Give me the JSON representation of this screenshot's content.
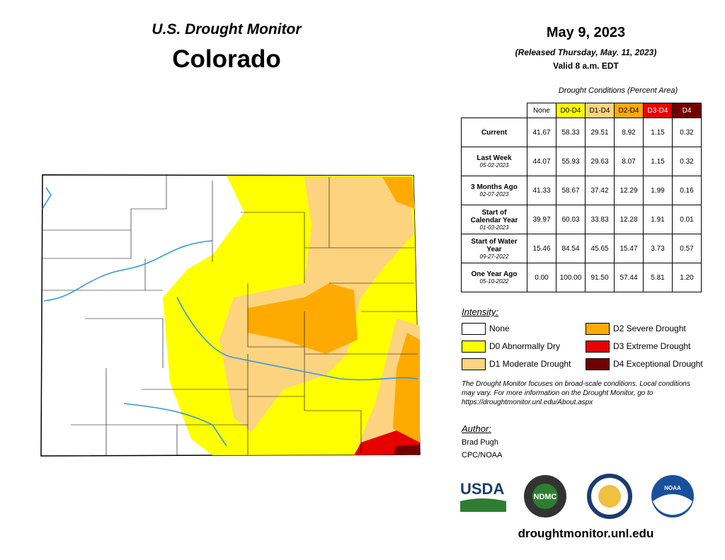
{
  "header": {
    "title": "U.S. Drought Monitor",
    "state": "Colorado"
  },
  "date": {
    "date": "May 9, 2023",
    "released": "(Released Thursday, May. 11, 2023)",
    "valid": "Valid 8 a.m. EDT"
  },
  "table": {
    "caption": "Drought Conditions (Percent Area)",
    "columns": [
      {
        "label": "None",
        "color": "#ffffff"
      },
      {
        "label": "D0-D4",
        "color": "#ffff00"
      },
      {
        "label": "D1-D4",
        "color": "#fcd37f"
      },
      {
        "label": "D2-D4",
        "color": "#ffaa00"
      },
      {
        "label": "D3-D4",
        "color": "#e60000"
      },
      {
        "label": "D4",
        "color": "#730000"
      }
    ],
    "rows": [
      {
        "label": "Current",
        "values": [
          "41.67",
          "58.33",
          "29.51",
          "8.92",
          "1.15",
          "0.32"
        ]
      },
      {
        "label": "Last Week",
        "date": "05-02-2023",
        "values": [
          "44.07",
          "55.93",
          "29.63",
          "8.07",
          "1.15",
          "0.32"
        ]
      },
      {
        "label": "3 Months Ago",
        "date": "02-07-2023",
        "values": [
          "41.33",
          "58.67",
          "37.42",
          "12.29",
          "1.99",
          "0.16"
        ]
      },
      {
        "label": "Start of Calendar Year",
        "date": "01-03-2023",
        "values": [
          "39.97",
          "60.03",
          "33.83",
          "12.28",
          "1.91",
          "0.01"
        ]
      },
      {
        "label": "Start of Water Year",
        "date": "09-27-2022",
        "values": [
          "15.46",
          "84.54",
          "45.65",
          "15.47",
          "3.73",
          "0.57"
        ]
      },
      {
        "label": "One Year Ago",
        "date": "05-10-2022",
        "values": [
          "0.00",
          "100.00",
          "91.50",
          "57.44",
          "5.81",
          "1.20"
        ]
      }
    ]
  },
  "legend": {
    "title": "Intensity:",
    "items": [
      {
        "label": "None",
        "color": "#ffffff"
      },
      {
        "label": "D0 Abnormally Dry",
        "color": "#ffff00"
      },
      {
        "label": "D1 Moderate Drought",
        "color": "#fcd37f"
      },
      {
        "label": "D2 Severe Drought",
        "color": "#ffaa00"
      },
      {
        "label": "D3 Extreme Drought",
        "color": "#e60000"
      },
      {
        "label": "D4 Exceptional Drought",
        "color": "#730000"
      }
    ]
  },
  "note": "The Drought Monitor focuses on broad-scale conditions. Local conditions may vary. For more information on the Drought Monitor, go to https://droughtmonitor.unl.edu/About.aspx",
  "author": {
    "title": "Author:",
    "name": "Brad Pugh",
    "org": "CPC/NOAA"
  },
  "logos": [
    "USDA",
    "NDMC",
    "NOAA"
  ],
  "url": "droughtmonitor.unl.edu"
}
